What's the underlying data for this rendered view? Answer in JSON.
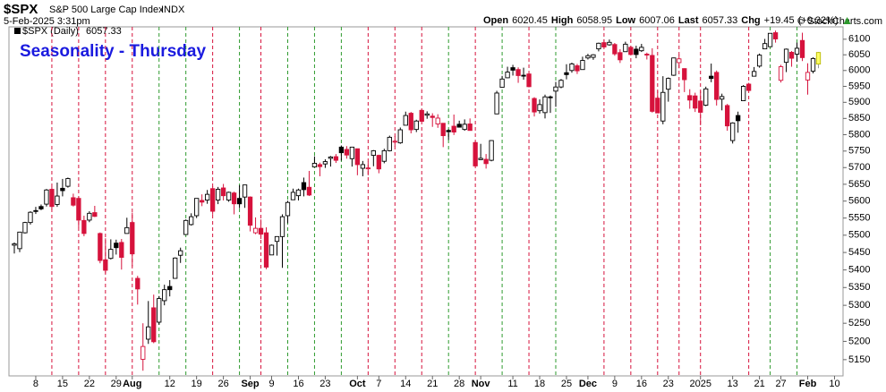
{
  "chart_data": {
    "type": "candlestick",
    "title": "Seasonality - Thursday",
    "header": {
      "symbol": "$SPX",
      "name": "S&P 500 Large Cap Index",
      "exchange": "INDX",
      "datetime": "5-Feb-2025 3:31pm",
      "quote": [
        {
          "label": "Open",
          "value": 6020.45
        },
        {
          "label": "High",
          "value": 6058.95
        },
        {
          "label": "Low",
          "value": 6007.06
        },
        {
          "label": "Last",
          "value": 6057.33
        }
      ],
      "chg_label": "Chg",
      "chg": {
        "value": 19.45,
        "label": "+19.45"
      },
      "chg_pct": {
        "value": 0.32,
        "label": "(+0.32%)"
      },
      "credit": "© StockCharts.com"
    },
    "legend": {
      "name": "$SPX (Daily)",
      "value": 6057.33
    },
    "x": [
      "2024-07-01",
      "2024-07-02",
      "2024-07-03",
      "2024-07-05",
      "2024-07-08",
      "2024-07-09",
      "2024-07-10",
      "2024-07-11",
      "2024-07-12",
      "2024-07-15",
      "2024-07-16",
      "2024-07-17",
      "2024-07-18",
      "2024-07-19",
      "2024-07-22",
      "2024-07-23",
      "2024-07-24",
      "2024-07-25",
      "2024-07-26",
      "2024-07-29",
      "2024-07-30",
      "2024-07-31",
      "2024-08-01",
      "2024-08-02",
      "2024-08-05",
      "2024-08-06",
      "2024-08-07",
      "2024-08-08",
      "2024-08-09",
      "2024-08-12",
      "2024-08-13",
      "2024-08-14",
      "2024-08-15",
      "2024-08-16",
      "2024-08-19",
      "2024-08-20",
      "2024-08-21",
      "2024-08-22",
      "2024-08-23",
      "2024-08-26",
      "2024-08-27",
      "2024-08-28",
      "2024-08-29",
      "2024-08-30",
      "2024-09-03",
      "2024-09-04",
      "2024-09-05",
      "2024-09-06",
      "2024-09-09",
      "2024-09-10",
      "2024-09-11",
      "2024-09-12",
      "2024-09-13",
      "2024-09-16",
      "2024-09-17",
      "2024-09-18",
      "2024-09-19",
      "2024-09-20",
      "2024-09-23",
      "2024-09-24",
      "2024-09-25",
      "2024-09-26",
      "2024-09-27",
      "2024-09-30",
      "2024-10-01",
      "2024-10-02",
      "2024-10-03",
      "2024-10-04",
      "2024-10-07",
      "2024-10-08",
      "2024-10-09",
      "2024-10-10",
      "2024-10-11",
      "2024-10-14",
      "2024-10-15",
      "2024-10-16",
      "2024-10-17",
      "2024-10-18",
      "2024-10-21",
      "2024-10-22",
      "2024-10-23",
      "2024-10-24",
      "2024-10-25",
      "2024-10-28",
      "2024-10-29",
      "2024-10-30",
      "2024-10-31",
      "2024-11-01",
      "2024-11-04",
      "2024-11-05",
      "2024-11-06",
      "2024-11-07",
      "2024-11-08",
      "2024-11-11",
      "2024-11-12",
      "2024-11-13",
      "2024-11-14",
      "2024-11-15",
      "2024-11-18",
      "2024-11-19",
      "2024-11-20",
      "2024-11-21",
      "2024-11-22",
      "2024-11-25",
      "2024-11-26",
      "2024-11-27",
      "2024-11-29",
      "2024-12-02",
      "2024-12-03",
      "2024-12-04",
      "2024-12-05",
      "2024-12-06",
      "2024-12-09",
      "2024-12-10",
      "2024-12-11",
      "2024-12-12",
      "2024-12-13",
      "2024-12-16",
      "2024-12-17",
      "2024-12-18",
      "2024-12-19",
      "2024-12-20",
      "2024-12-23",
      "2024-12-24",
      "2024-12-26",
      "2024-12-27",
      "2024-12-30",
      "2024-12-31",
      "2025-01-02",
      "2025-01-03",
      "2025-01-06",
      "2025-01-07",
      "2025-01-08",
      "2025-01-10",
      "2025-01-13",
      "2025-01-14",
      "2025-01-15",
      "2025-01-16",
      "2025-01-17",
      "2025-01-21",
      "2025-01-22",
      "2025-01-23",
      "2025-01-24",
      "2025-01-27",
      "2025-01-28",
      "2025-01-29",
      "2025-01-30",
      "2025-01-31",
      "2025-02-03",
      "2025-02-04",
      "2025-02-05"
    ],
    "open": [
      5471,
      5461,
      5507,
      5537,
      5572,
      5584,
      5591,
      5635,
      5590,
      5638,
      5644,
      5610,
      5608,
      5543,
      5544,
      5566,
      5505,
      5429,
      5433,
      5477,
      5479,
      5505,
      5537,
      5376,
      5151,
      5206,
      5293,
      5253,
      5313,
      5353,
      5376,
      5442,
      5502,
      5531,
      5557,
      5602,
      5603,
      5637,
      5603,
      5639,
      5603,
      5624,
      5608,
      5612,
      5612,
      5507,
      5520,
      5507,
      5443,
      5482,
      5496,
      5557,
      5604,
      5616,
      5655,
      5641,
      5702,
      5709,
      5711,
      5728,
      5733,
      5762,
      5755,
      5727,
      5757,
      5698,
      5698,
      5737,
      5737,
      5719,
      5751,
      5778,
      5775,
      5829,
      5866,
      5816,
      5875,
      5860,
      5857,
      5833,
      5835,
      5813,
      5826,
      5832,
      5816,
      5833,
      5776,
      5724,
      5725,
      5722,
      5864,
      5947,
      5977,
      6009,
      6003,
      5985,
      5989,
      5912,
      5874,
      5868,
      5917,
      5935,
      5948,
      5993,
      6000,
      6015,
      6003,
      6040,
      6042,
      6069,
      6089,
      6082,
      6083,
      6057,
      6060,
      6074,
      6068,
      6063,
      6052,
      6048,
      5913,
      5842,
      5941,
      5985,
      6025,
      6006,
      5921,
      5920,
      5904,
      5891,
      5982,
      5994,
      5910,
      5890,
      5782,
      5859,
      5905,
      5957,
      5982,
      6014,
      6069,
      6076,
      6121,
      5969,
      6026,
      6058,
      6052,
      6096,
      5970,
      5998,
      6020.45
    ],
    "high": [
      5479,
      5510,
      5539,
      5570,
      5583,
      5590,
      5636,
      5642,
      5655,
      5666,
      5670,
      5622,
      5614,
      5557,
      5570,
      5586,
      5508,
      5491,
      5488,
      5487,
      5489,
      5551,
      5566,
      5383,
      5250,
      5312,
      5330,
      5326,
      5358,
      5371,
      5436,
      5464,
      5546,
      5564,
      5608,
      5620,
      5633,
      5644,
      5642,
      5651,
      5628,
      5628,
      5647,
      5648,
      5614,
      5552,
      5546,
      5523,
      5473,
      5497,
      5561,
      5601,
      5637,
      5637,
      5670,
      5690,
      5734,
      5715,
      5725,
      5735,
      5741,
      5767,
      5765,
      5763,
      5757,
      5720,
      5718,
      5753,
      5739,
      5757,
      5797,
      5796,
      5822,
      5871,
      5870,
      5846,
      5878,
      5872,
      5866,
      5863,
      5835,
      5817,
      5862,
      5843,
      5847,
      5850,
      5780,
      5772,
      5741,
      5783,
      5936,
      5983,
      6012,
      6018,
      6010,
      6009,
      5993,
      5916,
      5909,
      5924,
      5921,
      5964,
      5973,
      6020,
      6025,
      6021,
      6044,
      6053,
      6052,
      6089,
      6100,
      6099,
      6088,
      6068,
      6092,
      6079,
      6079,
      6085,
      6057,
      6071,
      5936,
      5982,
      5978,
      6041,
      6050,
      6007,
      5941,
      5930,
      5935,
      5949,
      6022,
      6000,
      5927,
      5895,
      5838,
      5871,
      5954,
      5961,
      6011,
      6054,
      6101,
      6119,
      6128,
      6018,
      6070,
      6062,
      6089,
      6121,
      6023,
      6042,
      6058.95
    ],
    "low": [
      5447,
      5451,
      5505,
      5531,
      5562,
      5573,
      5584,
      5574,
      5583,
      5614,
      5640,
      5584,
      5522,
      5497,
      5538,
      5553,
      5419,
      5390,
      5430,
      5444,
      5401,
      5505,
      5410,
      5302,
      5120,
      5193,
      5195,
      5246,
      5300,
      5325,
      5376,
      5420,
      5502,
      5528,
      5550,
      5585,
      5592,
      5560,
      5591,
      5602,
      5598,
      5561,
      5579,
      5580,
      5511,
      5503,
      5489,
      5402,
      5443,
      5441,
      5406,
      5535,
      5604,
      5602,
      5614,
      5615,
      5702,
      5674,
      5699,
      5703,
      5714,
      5721,
      5727,
      5703,
      5677,
      5674,
      5677,
      5704,
      5683,
      5713,
      5749,
      5764,
      5772,
      5829,
      5804,
      5808,
      5840,
      5849,
      5824,
      5821,
      5762,
      5784,
      5799,
      5823,
      5812,
      5813,
      5703,
      5723,
      5697,
      5719,
      5864,
      5947,
      5976,
      5984,
      5961,
      5971,
      5947,
      5856,
      5865,
      5850,
      5867,
      5886,
      5944,
      5972,
      5993,
      5989,
      6003,
      6035,
      6034,
      6061,
      6075,
      6079,
      6047,
      6024,
      6060,
      6051,
      6039,
      6059,
      6035,
      5868,
      5866,
      5832,
      5902,
      5983,
      6007,
      5932,
      5880,
      5870,
      5829,
      5888,
      5963,
      5890,
      5875,
      5812,
      5773,
      5806,
      5905,
      5935,
      5982,
      6009,
      6068,
      6075,
      6089,
      5962,
      5995,
      6012,
      6028,
      6030,
      5924,
      5991,
      6007.06
    ],
    "close": [
      5475,
      5509,
      5537,
      5567,
      5572,
      5577,
      5633,
      5584,
      5615,
      5631,
      5667,
      5588,
      5544,
      5505,
      5564,
      5555,
      5427,
      5399,
      5459,
      5464,
      5436,
      5522,
      5446,
      5346,
      5186,
      5240,
      5199,
      5319,
      5344,
      5344,
      5434,
      5455,
      5543,
      5554,
      5608,
      5597,
      5620,
      5570,
      5635,
      5616,
      5626,
      5592,
      5592,
      5648,
      5529,
      5520,
      5503,
      5408,
      5471,
      5496,
      5554,
      5596,
      5626,
      5633,
      5634,
      5618,
      5713,
      5703,
      5718,
      5732,
      5722,
      5745,
      5738,
      5762,
      5709,
      5709,
      5699,
      5751,
      5696,
      5751,
      5792,
      5780,
      5815,
      5859,
      5815,
      5842,
      5841,
      5864,
      5853,
      5851,
      5797,
      5809,
      5808,
      5823,
      5832,
      5813,
      5705,
      5728,
      5712,
      5782,
      5929,
      5973,
      5995,
      6001,
      5984,
      5985,
      5949,
      5870,
      5893,
      5917,
      5917,
      5948,
      5969,
      5987,
      6021,
      5999,
      6032,
      6047,
      6050,
      6087,
      6075,
      6090,
      6053,
      6034,
      6084,
      6051,
      6051,
      6074,
      6050,
      5872,
      5867,
      5931,
      5975,
      6040,
      6037,
      5971,
      5907,
      5882,
      5869,
      5942,
      5975,
      5909,
      5918,
      5827,
      5836,
      5843,
      5950,
      5937,
      5997,
      6049,
      6086,
      6119,
      6101,
      6012,
      6068,
      6039,
      6071,
      6041,
      5994,
      6038,
      6057.33
    ],
    "xticks": [
      {
        "value": "2024-07-08",
        "label": "8"
      },
      {
        "value": "2024-07-15",
        "label": "15"
      },
      {
        "value": "2024-07-22",
        "label": "22"
      },
      {
        "value": "2024-07-29",
        "label": "29"
      },
      {
        "value": "2024-08-01",
        "label": "Aug"
      },
      {
        "value": "2024-08-12",
        "label": "12"
      },
      {
        "value": "2024-08-19",
        "label": "19"
      },
      {
        "value": "2024-08-26",
        "label": "26"
      },
      {
        "value": "2024-09-03",
        "label": "Sep"
      },
      {
        "value": "2024-09-09",
        "label": "9"
      },
      {
        "value": "2024-09-16",
        "label": "16"
      },
      {
        "value": "2024-09-23",
        "label": "23"
      },
      {
        "value": "2024-10-01",
        "label": "Oct"
      },
      {
        "value": "2024-10-07",
        "label": "7"
      },
      {
        "value": "2024-10-14",
        "label": "14"
      },
      {
        "value": "2024-10-21",
        "label": "21"
      },
      {
        "value": "2024-10-28",
        "label": "28"
      },
      {
        "value": "2024-11-01",
        "label": "Nov"
      },
      {
        "value": "2024-11-11",
        "label": "11"
      },
      {
        "value": "2024-11-18",
        "label": "18"
      },
      {
        "value": "2024-11-25",
        "label": "25"
      },
      {
        "value": "2024-12-02",
        "label": "Dec"
      },
      {
        "value": "2024-12-09",
        "label": "9"
      },
      {
        "value": "2024-12-16",
        "label": "16"
      },
      {
        "value": "2024-12-23",
        "label": "23"
      },
      {
        "value": "2025-01-02",
        "label": "2025"
      },
      {
        "value": "2025-01-13",
        "label": "13"
      },
      {
        "value": "2025-01-21",
        "label": "21"
      },
      {
        "value": "2025-01-27",
        "label": "27"
      },
      {
        "value": "2025-02-03",
        "label": "Feb"
      },
      {
        "value": "2025-02-10",
        "label": "10"
      }
    ],
    "ylim": [
      5106,
      6140
    ],
    "yticks": [
      5150,
      5200,
      5250,
      5300,
      5350,
      5400,
      5450,
      5500,
      5550,
      5600,
      5650,
      5700,
      5750,
      5800,
      5850,
      5900,
      5950,
      6000,
      6050,
      6100
    ],
    "log_scale": true,
    "grid": false,
    "up_color": "#000000",
    "down_color": "#d6123c",
    "last_highlight": "#ffff66",
    "thursday_up_color": "#2e9a2e",
    "thursday_down_color": "#d6123c",
    "title_color": "#1a1adf"
  }
}
